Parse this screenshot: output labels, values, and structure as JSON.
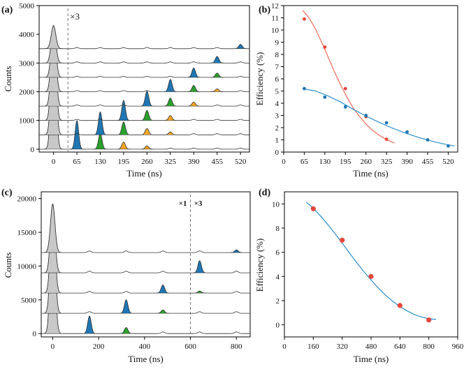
{
  "colors": {
    "gray": "#c8c8c8",
    "blue": "#1f77b4",
    "green": "#2ca02c",
    "orange": "#f5a623",
    "red": "#e8453c",
    "fitRed": "#f26b5b",
    "fitBlue": "#2a8fcf"
  },
  "chart_data": [
    {
      "panel": "(a)",
      "type": "area",
      "title": "",
      "xlabel": "Time (ns)",
      "ylabel": "Counts",
      "xlim": [
        -40,
        545
      ],
      "ylim": [
        -100,
        5000
      ],
      "xticks": [
        0,
        65,
        130,
        195,
        260,
        325,
        390,
        455,
        520
      ],
      "yticks": [
        0,
        1000,
        2000,
        3000,
        4000,
        5000
      ],
      "annotation": "×3",
      "annotation_x": 40,
      "trace_count": 8,
      "trace_offset": 500,
      "main_peak": {
        "x": 0,
        "height": 4300
      },
      "filled_peaks": [
        {
          "trace": 0,
          "x": 65,
          "h": 1000,
          "color": "blue"
        },
        {
          "trace": 0,
          "x": 130,
          "h": 550,
          "color": "green"
        },
        {
          "trace": 0,
          "x": 195,
          "h": 250,
          "color": "orange"
        },
        {
          "trace": 0,
          "x": 260,
          "h": 120,
          "color": "orange"
        },
        {
          "trace": 1,
          "x": 130,
          "h": 800,
          "color": "blue"
        },
        {
          "trace": 1,
          "x": 195,
          "h": 450,
          "color": "green"
        },
        {
          "trace": 1,
          "x": 260,
          "h": 220,
          "color": "orange"
        },
        {
          "trace": 1,
          "x": 325,
          "h": 100,
          "color": "orange"
        },
        {
          "trace": 2,
          "x": 195,
          "h": 700,
          "color": "blue"
        },
        {
          "trace": 2,
          "x": 260,
          "h": 350,
          "color": "green"
        },
        {
          "trace": 2,
          "x": 325,
          "h": 170,
          "color": "orange"
        },
        {
          "trace": 3,
          "x": 260,
          "h": 520,
          "color": "blue"
        },
        {
          "trace": 3,
          "x": 325,
          "h": 280,
          "color": "green"
        },
        {
          "trace": 3,
          "x": 390,
          "h": 140,
          "color": "orange"
        },
        {
          "trace": 4,
          "x": 325,
          "h": 430,
          "color": "blue"
        },
        {
          "trace": 4,
          "x": 390,
          "h": 220,
          "color": "green"
        },
        {
          "trace": 4,
          "x": 455,
          "h": 100,
          "color": "orange"
        },
        {
          "trace": 5,
          "x": 390,
          "h": 330,
          "color": "blue"
        },
        {
          "trace": 5,
          "x": 455,
          "h": 150,
          "color": "green"
        },
        {
          "trace": 6,
          "x": 455,
          "h": 230,
          "color": "blue"
        },
        {
          "trace": 7,
          "x": 520,
          "h": 150,
          "color": "blue"
        }
      ]
    },
    {
      "panel": "(b)",
      "type": "scatter",
      "title": "",
      "xlabel": "Time (ns)",
      "ylabel": "Efficiency (%)",
      "xlim": [
        0,
        550
      ],
      "ylim": [
        0,
        12
      ],
      "xticks": [
        0,
        65,
        130,
        195,
        260,
        325,
        390,
        455,
        520
      ],
      "yticks": [
        0,
        1,
        2,
        3,
        4,
        5,
        6,
        7,
        8,
        9,
        10,
        11,
        12
      ],
      "series": [
        {
          "name": "red",
          "color": "red",
          "fit_color": "fitRed",
          "x": [
            65,
            130,
            195,
            260,
            325
          ],
          "y": [
            10.9,
            8.6,
            5.2,
            2.9,
            1.05
          ],
          "fit_x": [
            60,
            80,
            100,
            120,
            140,
            160,
            180,
            200,
            220,
            240,
            260,
            280,
            300,
            320,
            340,
            350
          ],
          "fit_y": [
            11.6,
            11.0,
            10.1,
            9.0,
            7.8,
            6.6,
            5.5,
            4.5,
            3.6,
            2.9,
            2.3,
            1.8,
            1.4,
            1.1,
            0.85,
            0.75
          ]
        },
        {
          "name": "blue",
          "color": "blue",
          "fit_color": "fitBlue",
          "x": [
            65,
            130,
            195,
            260,
            325,
            390,
            455,
            520
          ],
          "y": [
            5.2,
            4.5,
            3.7,
            3.0,
            2.4,
            1.65,
            1.0,
            0.5
          ],
          "fit_x": [
            60,
            100,
            140,
            180,
            220,
            260,
            300,
            340,
            380,
            420,
            460,
            500,
            540
          ],
          "fit_y": [
            5.2,
            5.0,
            4.6,
            4.1,
            3.5,
            2.95,
            2.45,
            2.0,
            1.6,
            1.25,
            0.95,
            0.7,
            0.5
          ]
        }
      ]
    },
    {
      "panel": "(c)",
      "type": "area",
      "title": "",
      "xlabel": "Time (ns)",
      "ylabel": "Counts",
      "xlim": [
        -50,
        860
      ],
      "ylim": [
        -500,
        21000
      ],
      "xticks": [
        0,
        200,
        400,
        600,
        800
      ],
      "yticks": [
        0,
        5000,
        10000,
        15000,
        20000
      ],
      "annotation_left": "×1",
      "annotation_right": "×3",
      "annotation_x": 600,
      "trace_count": 5,
      "trace_offset": 3000,
      "main_peak": {
        "x": 0,
        "height": 19200
      },
      "filled_peaks": [
        {
          "trace": 0,
          "x": 160,
          "h": 2600,
          "color": "blue"
        },
        {
          "trace": 0,
          "x": 320,
          "h": 900,
          "color": "green"
        },
        {
          "trace": 1,
          "x": 320,
          "h": 2000,
          "color": "blue"
        },
        {
          "trace": 1,
          "x": 480,
          "h": 500,
          "color": "green"
        },
        {
          "trace": 2,
          "x": 480,
          "h": 1200,
          "color": "blue"
        },
        {
          "trace": 2,
          "x": 640,
          "h": 300,
          "color": "green"
        },
        {
          "trace": 3,
          "x": 640,
          "h": 1800,
          "color": "blue"
        },
        {
          "trace": 4,
          "x": 800,
          "h": 400,
          "color": "blue"
        }
      ]
    },
    {
      "panel": "(d)",
      "type": "scatter",
      "title": "",
      "xlabel": "Time (ns)",
      "ylabel": "Efficiency (%)",
      "xlim": [
        0,
        960
      ],
      "ylim": [
        -1,
        11
      ],
      "xticks": [
        0,
        160,
        320,
        480,
        640,
        800,
        960
      ],
      "yticks": [
        0,
        2,
        4,
        6,
        8,
        10
      ],
      "series": [
        {
          "name": "red",
          "color": "red",
          "fit_color": "fitBlue",
          "x": [
            160,
            320,
            480,
            640,
            800
          ],
          "y": [
            9.6,
            7.0,
            4.0,
            1.6,
            0.4
          ],
          "fit_x": [
            120,
            160,
            200,
            240,
            280,
            320,
            360,
            400,
            440,
            480,
            520,
            560,
            600,
            640,
            680,
            720,
            760,
            800,
            840
          ],
          "fit_y": [
            10.15,
            9.65,
            9.0,
            8.3,
            7.55,
            6.75,
            5.95,
            5.15,
            4.4,
            3.7,
            3.05,
            2.45,
            1.95,
            1.5,
            1.15,
            0.85,
            0.65,
            0.5,
            0.45
          ]
        }
      ]
    }
  ]
}
